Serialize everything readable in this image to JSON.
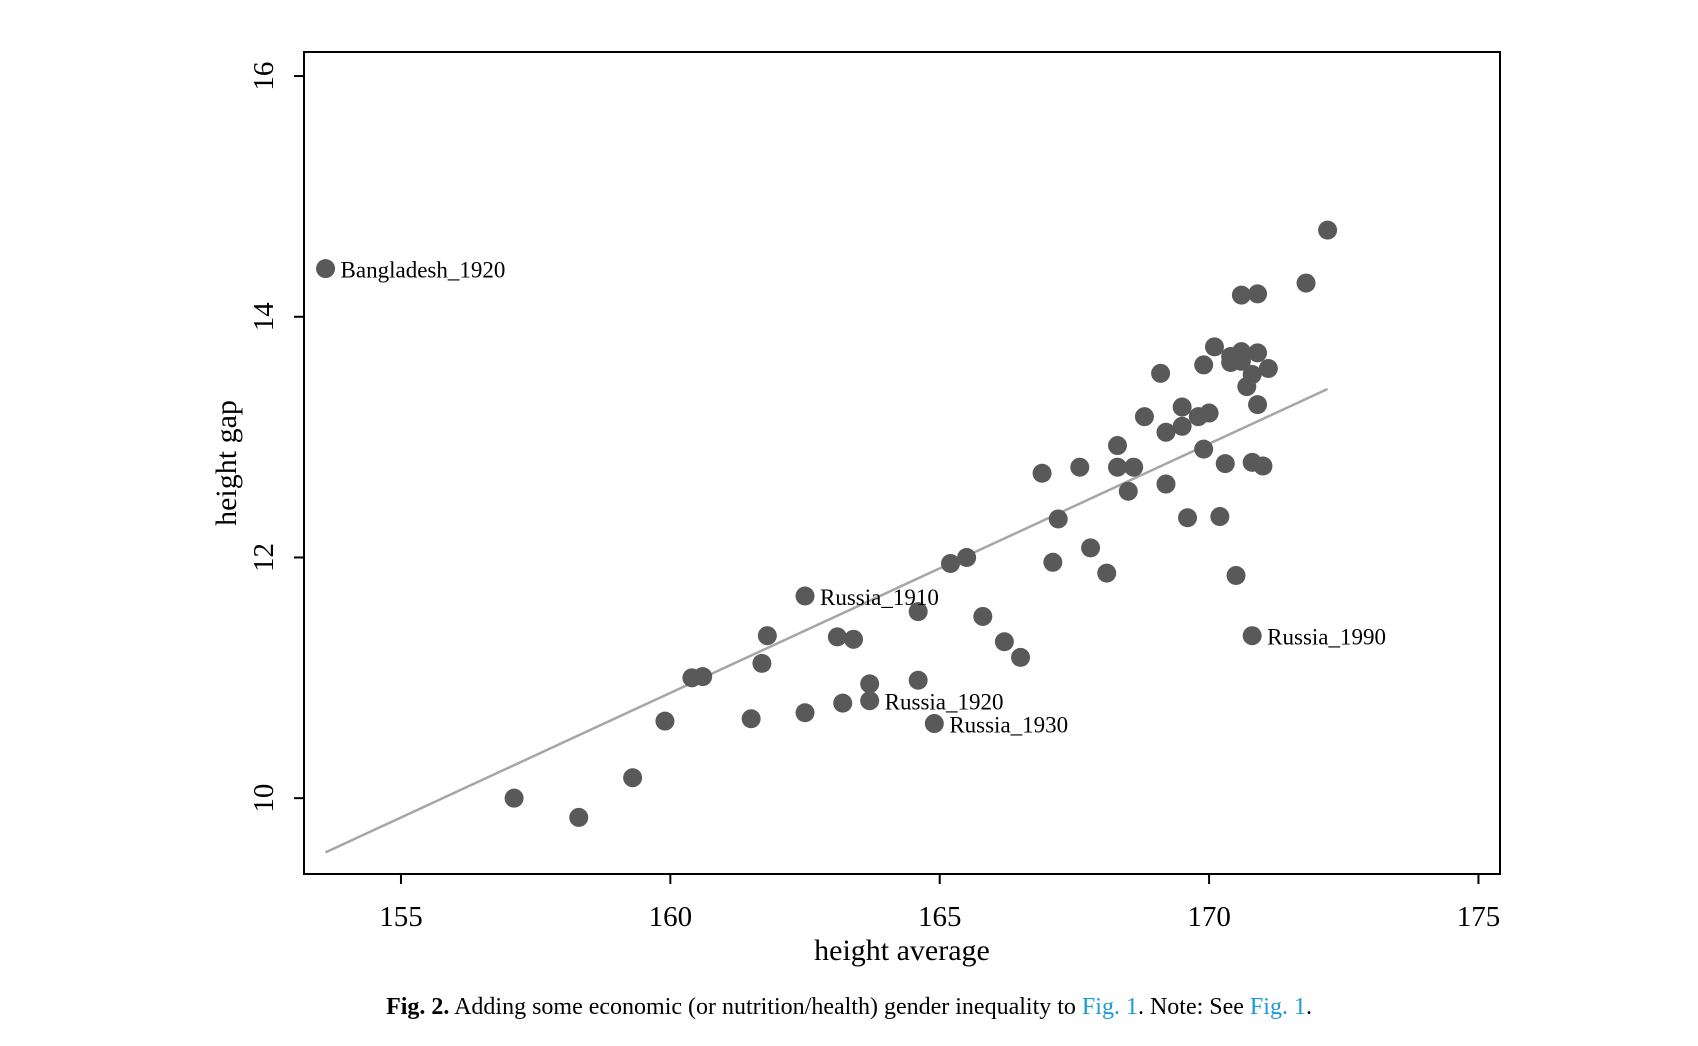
{
  "chart_data": {
    "type": "scatter",
    "xlabel": "height average",
    "ylabel": "height gap",
    "xlim": [
      153.2,
      175.4
    ],
    "ylim": [
      9.37,
      16.2
    ],
    "xticks": [
      155,
      160,
      165,
      170,
      175
    ],
    "yticks": [
      10,
      12,
      14,
      16
    ],
    "grid": false,
    "point_color": "#595959",
    "fit_line_color": "#a6a6a6",
    "fit_line": {
      "x": [
        153.6,
        172.2
      ],
      "y": [
        9.55,
        13.4
      ]
    },
    "points": [
      {
        "x": 153.6,
        "y": 14.4,
        "label": "Bangladesh_1920"
      },
      {
        "x": 157.1,
        "y": 10.0
      },
      {
        "x": 158.3,
        "y": 9.84
      },
      {
        "x": 159.3,
        "y": 10.17
      },
      {
        "x": 159.9,
        "y": 10.64
      },
      {
        "x": 160.4,
        "y": 11.0
      },
      {
        "x": 160.6,
        "y": 11.01
      },
      {
        "x": 161.5,
        "y": 10.66
      },
      {
        "x": 161.7,
        "y": 11.12
      },
      {
        "x": 161.8,
        "y": 11.35
      },
      {
        "x": 162.5,
        "y": 11.68,
        "label": "Russia_1910"
      },
      {
        "x": 162.5,
        "y": 10.71
      },
      {
        "x": 163.1,
        "y": 11.34
      },
      {
        "x": 163.2,
        "y": 10.79
      },
      {
        "x": 163.4,
        "y": 11.32
      },
      {
        "x": 163.7,
        "y": 10.95
      },
      {
        "x": 163.7,
        "y": 10.81,
        "label": "Russia_1920"
      },
      {
        "x": 164.6,
        "y": 10.98
      },
      {
        "x": 164.6,
        "y": 11.55
      },
      {
        "x": 164.9,
        "y": 10.62,
        "label": "Russia_1930"
      },
      {
        "x": 165.2,
        "y": 11.95
      },
      {
        "x": 165.5,
        "y": 12.0
      },
      {
        "x": 165.8,
        "y": 11.51
      },
      {
        "x": 166.2,
        "y": 11.3
      },
      {
        "x": 166.5,
        "y": 11.17
      },
      {
        "x": 166.9,
        "y": 12.7
      },
      {
        "x": 167.1,
        "y": 11.96
      },
      {
        "x": 167.2,
        "y": 12.32
      },
      {
        "x": 167.6,
        "y": 12.75
      },
      {
        "x": 167.8,
        "y": 12.08
      },
      {
        "x": 168.1,
        "y": 11.87
      },
      {
        "x": 168.3,
        "y": 12.75
      },
      {
        "x": 168.3,
        "y": 12.93
      },
      {
        "x": 168.5,
        "y": 12.55
      },
      {
        "x": 168.6,
        "y": 12.75
      },
      {
        "x": 168.8,
        "y": 13.17
      },
      {
        "x": 169.1,
        "y": 13.53
      },
      {
        "x": 169.2,
        "y": 13.04
      },
      {
        "x": 169.2,
        "y": 12.61
      },
      {
        "x": 169.5,
        "y": 13.25
      },
      {
        "x": 169.5,
        "y": 13.09
      },
      {
        "x": 169.6,
        "y": 12.33
      },
      {
        "x": 169.8,
        "y": 13.17
      },
      {
        "x": 169.9,
        "y": 12.9
      },
      {
        "x": 169.9,
        "y": 13.6
      },
      {
        "x": 170.0,
        "y": 13.2
      },
      {
        "x": 170.1,
        "y": 13.75
      },
      {
        "x": 170.2,
        "y": 12.34
      },
      {
        "x": 170.3,
        "y": 12.78
      },
      {
        "x": 170.4,
        "y": 13.67
      },
      {
        "x": 170.4,
        "y": 13.62
      },
      {
        "x": 170.5,
        "y": 11.85
      },
      {
        "x": 170.6,
        "y": 14.18
      },
      {
        "x": 170.6,
        "y": 13.71
      },
      {
        "x": 170.6,
        "y": 13.63
      },
      {
        "x": 170.7,
        "y": 13.42
      },
      {
        "x": 170.8,
        "y": 13.52
      },
      {
        "x": 170.8,
        "y": 11.35,
        "label": "Russia_1990"
      },
      {
        "x": 170.8,
        "y": 12.79
      },
      {
        "x": 170.9,
        "y": 13.7
      },
      {
        "x": 170.9,
        "y": 14.19
      },
      {
        "x": 170.9,
        "y": 13.27
      },
      {
        "x": 171.0,
        "y": 12.76
      },
      {
        "x": 171.1,
        "y": 13.57
      },
      {
        "x": 171.8,
        "y": 14.28
      },
      {
        "x": 172.2,
        "y": 14.72
      }
    ]
  },
  "caption": {
    "fig_label": "Fig. 2.",
    "text_before": " Adding some economic (or nutrition/health) gender inequality to ",
    "ref1": "Fig. 1",
    "text_middle": ". Note: See ",
    "ref2": "Fig. 1",
    "text_after": ".",
    "link_color": "#1c9ad6"
  }
}
